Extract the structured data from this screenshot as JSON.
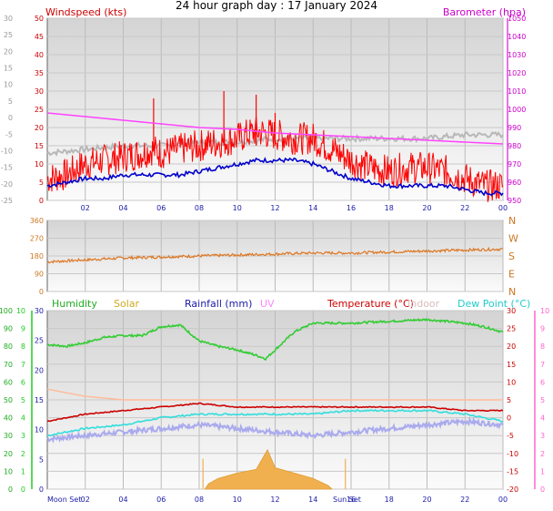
{
  "title": "24 hour graph day : 17 January 2024",
  "x_ticks": [
    "02",
    "04",
    "06",
    "08",
    "10",
    "12",
    "14",
    "16",
    "18",
    "20",
    "22",
    "00"
  ],
  "chart_data": [
    {
      "type": "line",
      "name": "wind-panel",
      "left_axis_label": "Windspeed (kts)",
      "right_axis_label": "Barometer (hpa)",
      "outer_left_ticks": [
        "30",
        "25",
        "20",
        "15",
        "10",
        "5",
        "0",
        "-5",
        "-10",
        "-15",
        "-20",
        "-25"
      ],
      "left_ticks": [
        "50",
        "45",
        "40",
        "35",
        "30",
        "25",
        "20",
        "15",
        "10",
        "5",
        "0"
      ],
      "right_ticks": [
        "1050",
        "1040",
        "1030",
        "1020",
        "1010",
        "1000",
        "990",
        "980",
        "970",
        "960",
        "950"
      ],
      "ylim_left": [
        0,
        50
      ],
      "ylim_right": [
        950,
        1050
      ],
      "colors": {
        "gust": "#ff0000",
        "avg": "#0000cc",
        "temp": "#b8b8b8",
        "baro": "#ff44ff"
      },
      "gust": [
        [
          0,
          6
        ],
        [
          1,
          7
        ],
        [
          2,
          10
        ],
        [
          3,
          11
        ],
        [
          4,
          12
        ],
        [
          5,
          13
        ],
        [
          5.5,
          14
        ],
        [
          6,
          13
        ],
        [
          7,
          14
        ],
        [
          8,
          15
        ],
        [
          9,
          16
        ],
        [
          10,
          17
        ],
        [
          11,
          19
        ],
        [
          12,
          18
        ],
        [
          13,
          17
        ],
        [
          14,
          17
        ],
        [
          15,
          14
        ],
        [
          16,
          11
        ],
        [
          17,
          9
        ],
        [
          18,
          8
        ],
        [
          19,
          9
        ],
        [
          20,
          9
        ],
        [
          21,
          8
        ],
        [
          22,
          6
        ],
        [
          23,
          4
        ],
        [
          24,
          4
        ]
      ],
      "avg": [
        [
          0,
          4
        ],
        [
          1,
          5
        ],
        [
          2,
          6
        ],
        [
          3,
          6
        ],
        [
          4,
          7
        ],
        [
          5,
          7
        ],
        [
          6,
          7
        ],
        [
          7,
          7
        ],
        [
          8,
          8
        ],
        [
          9,
          9
        ],
        [
          10,
          10
        ],
        [
          11,
          11
        ],
        [
          12,
          11
        ],
        [
          13,
          11
        ],
        [
          14,
          10
        ],
        [
          15,
          8
        ],
        [
          16,
          6
        ],
        [
          17,
          5
        ],
        [
          18,
          4
        ],
        [
          19,
          4
        ],
        [
          20,
          4
        ],
        [
          21,
          4
        ],
        [
          22,
          3
        ],
        [
          23,
          2
        ],
        [
          24,
          2
        ]
      ],
      "temp_overlay": [
        [
          0,
          13
        ],
        [
          2,
          14
        ],
        [
          4,
          15
        ],
        [
          6,
          15
        ],
        [
          8,
          16
        ],
        [
          10,
          16
        ],
        [
          12,
          17
        ],
        [
          14,
          17
        ],
        [
          16,
          17
        ],
        [
          18,
          17
        ],
        [
          20,
          17
        ],
        [
          22,
          18
        ],
        [
          24,
          18
        ]
      ],
      "baro": [
        [
          0,
          998
        ],
        [
          2,
          996
        ],
        [
          4,
          994
        ],
        [
          6,
          992
        ],
        [
          8,
          990
        ],
        [
          10,
          989
        ],
        [
          12,
          987
        ],
        [
          14,
          986
        ],
        [
          16,
          985
        ],
        [
          18,
          984
        ],
        [
          20,
          983
        ],
        [
          22,
          982
        ],
        [
          24,
          981
        ]
      ],
      "gust_spikes": [
        [
          5.6,
          28
        ],
        [
          9.3,
          30
        ],
        [
          11.0,
          29
        ],
        [
          12.0,
          24
        ]
      ]
    },
    {
      "type": "line",
      "name": "direction-panel",
      "left_ticks": [
        "360",
        "270",
        "180",
        "90",
        "0"
      ],
      "right_labels": [
        "N",
        "W",
        "S",
        "E",
        "N"
      ],
      "ylim": [
        0,
        360
      ],
      "color": "#dd7722",
      "direction": [
        [
          0,
          150
        ],
        [
          2,
          160
        ],
        [
          4,
          170
        ],
        [
          6,
          175
        ],
        [
          8,
          180
        ],
        [
          10,
          185
        ],
        [
          12,
          190
        ],
        [
          14,
          195
        ],
        [
          16,
          195
        ],
        [
          18,
          200
        ],
        [
          20,
          205
        ],
        [
          22,
          210
        ],
        [
          24,
          215
        ]
      ]
    },
    {
      "type": "line",
      "name": "env-panel",
      "labels": {
        "humidity": "Humidity",
        "solar": "Solar",
        "rain": "Rainfall (mm)",
        "uv": "UV",
        "temp": "Temperature (°C)",
        "indoor": "Indoor",
        "dew": "Dew Point (°C)"
      },
      "colors": {
        "humidity": "#33cc33",
        "solar": "#ccaa22",
        "rain": "#3333aa",
        "uv": "#ffaaff",
        "temp": "#cc0000",
        "indoor": "#ddbbbb",
        "dew": "#33dddd",
        "lavender": "#aaaaee",
        "peach": "#ffbb99"
      },
      "humidity_ticks": [
        "100",
        "90",
        "80",
        "70",
        "60",
        "50",
        "40",
        "30",
        "20",
        "10",
        "0"
      ],
      "solar_ticks": [
        "10",
        "9",
        "8",
        "7",
        "6",
        "5",
        "4",
        "3",
        "2",
        "1",
        "0"
      ],
      "rain_ticks": [
        "30",
        "25",
        "20",
        "15",
        "10",
        "5",
        "0"
      ],
      "temp_ticks": [
        "30",
        "25",
        "20",
        "15",
        "10",
        "5",
        "0",
        "-5",
        "-10",
        "-15",
        "-20"
      ],
      "uv_ticks": [
        "10",
        "9",
        "8",
        "7",
        "6",
        "5",
        "4",
        "3",
        "2",
        "1",
        "0"
      ],
      "humidity_lim": [
        0,
        100
      ],
      "temp_lim": [
        -20,
        30
      ],
      "humidity": [
        [
          0,
          81
        ],
        [
          1,
          80
        ],
        [
          2,
          82
        ],
        [
          3,
          85
        ],
        [
          4,
          86
        ],
        [
          5,
          86
        ],
        [
          6,
          91
        ],
        [
          7,
          92
        ],
        [
          8,
          83
        ],
        [
          9,
          80
        ],
        [
          10,
          78
        ],
        [
          11,
          75
        ],
        [
          11.5,
          73
        ],
        [
          12,
          78
        ],
        [
          13,
          88
        ],
        [
          14,
          93
        ],
        [
          16,
          93
        ],
        [
          18,
          94
        ],
        [
          20,
          95
        ],
        [
          22,
          93
        ],
        [
          23,
          91
        ],
        [
          24,
          88
        ]
      ],
      "temp": [
        [
          0,
          -1
        ],
        [
          1,
          0
        ],
        [
          2,
          1
        ],
        [
          4,
          2
        ],
        [
          6,
          3
        ],
        [
          8,
          4
        ],
        [
          10,
          3
        ],
        [
          12,
          3
        ],
        [
          14,
          3
        ],
        [
          16,
          3
        ],
        [
          18,
          3
        ],
        [
          20,
          3
        ],
        [
          22,
          2
        ],
        [
          24,
          2
        ]
      ],
      "dew": [
        [
          0,
          -5
        ],
        [
          2,
          -3
        ],
        [
          4,
          -2
        ],
        [
          6,
          0
        ],
        [
          8,
          1
        ],
        [
          10,
          1
        ],
        [
          12,
          1
        ],
        [
          14,
          1
        ],
        [
          16,
          2
        ],
        [
          18,
          2
        ],
        [
          20,
          2
        ],
        [
          22,
          1
        ],
        [
          24,
          -1
        ]
      ],
      "lavender": [
        [
          0,
          -6
        ],
        [
          2,
          -5
        ],
        [
          4,
          -4
        ],
        [
          6,
          -3
        ],
        [
          8,
          -2
        ],
        [
          10,
          -3
        ],
        [
          12,
          -4
        ],
        [
          14,
          -5
        ],
        [
          16,
          -4
        ],
        [
          18,
          -3
        ],
        [
          20,
          -2
        ],
        [
          22,
          -1
        ],
        [
          24,
          -2
        ]
      ],
      "peach": [
        [
          0,
          8
        ],
        [
          2,
          6
        ],
        [
          4,
          5
        ],
        [
          6,
          5
        ],
        [
          8,
          5
        ],
        [
          12,
          5
        ],
        [
          16,
          5
        ],
        [
          20,
          5
        ],
        [
          24,
          5
        ]
      ],
      "solar": [
        [
          8.3,
          0
        ],
        [
          8.5,
          0.3
        ],
        [
          9,
          0.6
        ],
        [
          10,
          0.9
        ],
        [
          11,
          1.1
        ],
        [
          11.6,
          2.2
        ],
        [
          12,
          1.2
        ],
        [
          13,
          0.9
        ],
        [
          14,
          0.6
        ],
        [
          14.8,
          0.2
        ],
        [
          15,
          0
        ]
      ],
      "sun_markers": [
        "Moon Set",
        "Sun Set"
      ]
    }
  ]
}
